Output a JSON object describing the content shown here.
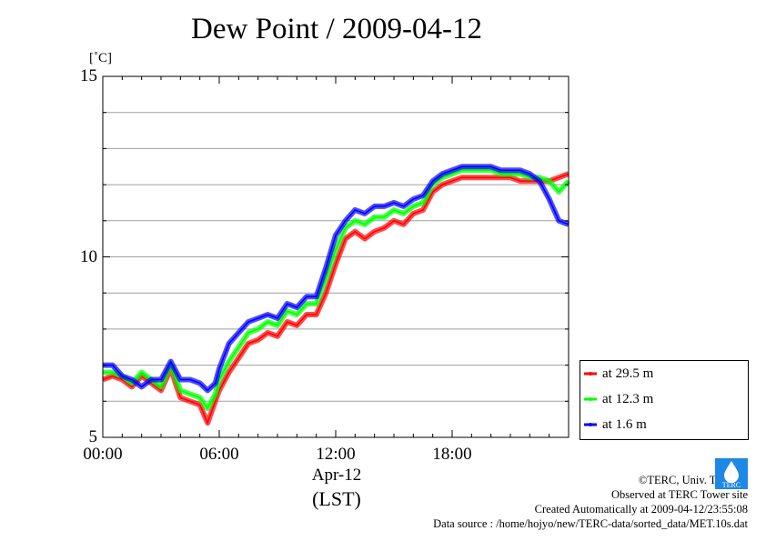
{
  "title": "Dew Point / 2009-04-12",
  "unit": "[˚C]",
  "date_label": "Apr-12",
  "timezone_label": "(LST)",
  "credits": [
    "©TERC, Univ. Tsukuba",
    "Observed at TERC Tower site",
    "Created Automatically at 2009-04-12/23:55:08",
    "Data source : /home/hojyo/new/TERC-data/sorted_data/MET.10s.dat"
  ],
  "logo_text": "TERC",
  "chart_data": {
    "type": "line",
    "title": "Dew Point / 2009-04-12",
    "ylabel": "[˚C]",
    "xlabel": "",
    "xlim": [
      0,
      24
    ],
    "ylim": [
      5,
      15
    ],
    "yticks": [
      5,
      10,
      15
    ],
    "xticks": [
      0,
      6,
      12,
      18
    ],
    "xtick_labels": [
      "00:00",
      "06:00",
      "12:00",
      "18:00"
    ],
    "grid": true,
    "legend_position": "bottom-right-outside",
    "series": [
      {
        "name": "at 29.5 m",
        "color": "#ff0000",
        "x": [
          0,
          0.5,
          1,
          1.5,
          2,
          2.5,
          3,
          3.5,
          4,
          4.5,
          5,
          5.4,
          5.8,
          6,
          6.5,
          7,
          7.5,
          8,
          8.5,
          9,
          9.5,
          10,
          10.5,
          11,
          11.5,
          12,
          12.5,
          13,
          13.5,
          14,
          14.5,
          15,
          15.5,
          16,
          16.5,
          17,
          17.5,
          18,
          18.5,
          19,
          19.5,
          20,
          20.5,
          21,
          21.5,
          22,
          22.5,
          23,
          23.5,
          24
        ],
        "values": [
          6.6,
          6.7,
          6.6,
          6.4,
          6.7,
          6.5,
          6.3,
          6.9,
          6.1,
          6.0,
          5.9,
          5.4,
          6.0,
          6.3,
          6.8,
          7.2,
          7.6,
          7.7,
          7.9,
          7.8,
          8.2,
          8.1,
          8.4,
          8.4,
          9.0,
          9.8,
          10.5,
          10.7,
          10.5,
          10.7,
          10.8,
          11.0,
          10.9,
          11.2,
          11.3,
          11.8,
          12.0,
          12.1,
          12.2,
          12.2,
          12.2,
          12.2,
          12.2,
          12.2,
          12.1,
          12.1,
          12.1,
          12.1,
          12.2,
          12.3
        ]
      },
      {
        "name": "at 12.3 m",
        "color": "#00ff00",
        "x": [
          0,
          0.5,
          1,
          1.5,
          2,
          2.5,
          3,
          3.5,
          4,
          4.5,
          5,
          5.4,
          5.8,
          6,
          6.5,
          7,
          7.5,
          8,
          8.5,
          9,
          9.5,
          10,
          10.5,
          11,
          11.5,
          12,
          12.5,
          13,
          13.5,
          14,
          14.5,
          15,
          15.5,
          16,
          16.5,
          17,
          17.5,
          18,
          18.5,
          19,
          19.5,
          20,
          20.5,
          21,
          21.5,
          22,
          22.5,
          23,
          23.5,
          24
        ],
        "values": [
          6.8,
          6.8,
          6.7,
          6.5,
          6.8,
          6.6,
          6.4,
          7.0,
          6.3,
          6.2,
          6.1,
          5.8,
          6.2,
          6.6,
          7.1,
          7.5,
          7.9,
          8.0,
          8.2,
          8.1,
          8.5,
          8.4,
          8.7,
          8.7,
          9.4,
          10.2,
          10.8,
          11.0,
          10.9,
          11.1,
          11.1,
          11.3,
          11.2,
          11.4,
          11.5,
          12.0,
          12.2,
          12.3,
          12.4,
          12.4,
          12.4,
          12.4,
          12.3,
          12.3,
          12.3,
          12.2,
          12.2,
          12.1,
          11.8,
          12.1
        ]
      },
      {
        "name": "at 1.6 m",
        "color": "#0000ff",
        "x": [
          0,
          0.5,
          1,
          1.5,
          2,
          2.5,
          3,
          3.5,
          4,
          4.5,
          5,
          5.4,
          5.8,
          6,
          6.5,
          7,
          7.5,
          8,
          8.5,
          9,
          9.5,
          10,
          10.5,
          11,
          11.5,
          12,
          12.5,
          13,
          13.5,
          14,
          14.5,
          15,
          15.5,
          16,
          16.5,
          17,
          17.5,
          18,
          18.5,
          19,
          19.5,
          20,
          20.5,
          21,
          21.5,
          22,
          22.5,
          23,
          23.5,
          24
        ],
        "values": [
          7.0,
          7.0,
          6.7,
          6.6,
          6.4,
          6.6,
          6.6,
          7.1,
          6.6,
          6.6,
          6.5,
          6.3,
          6.5,
          6.9,
          7.6,
          7.9,
          8.2,
          8.3,
          8.4,
          8.3,
          8.7,
          8.6,
          8.9,
          8.9,
          9.7,
          10.6,
          11.0,
          11.3,
          11.2,
          11.4,
          11.4,
          11.5,
          11.4,
          11.6,
          11.7,
          12.1,
          12.3,
          12.4,
          12.5,
          12.5,
          12.5,
          12.5,
          12.4,
          12.4,
          12.4,
          12.3,
          12.1,
          11.6,
          11.0,
          10.9
        ]
      }
    ]
  }
}
